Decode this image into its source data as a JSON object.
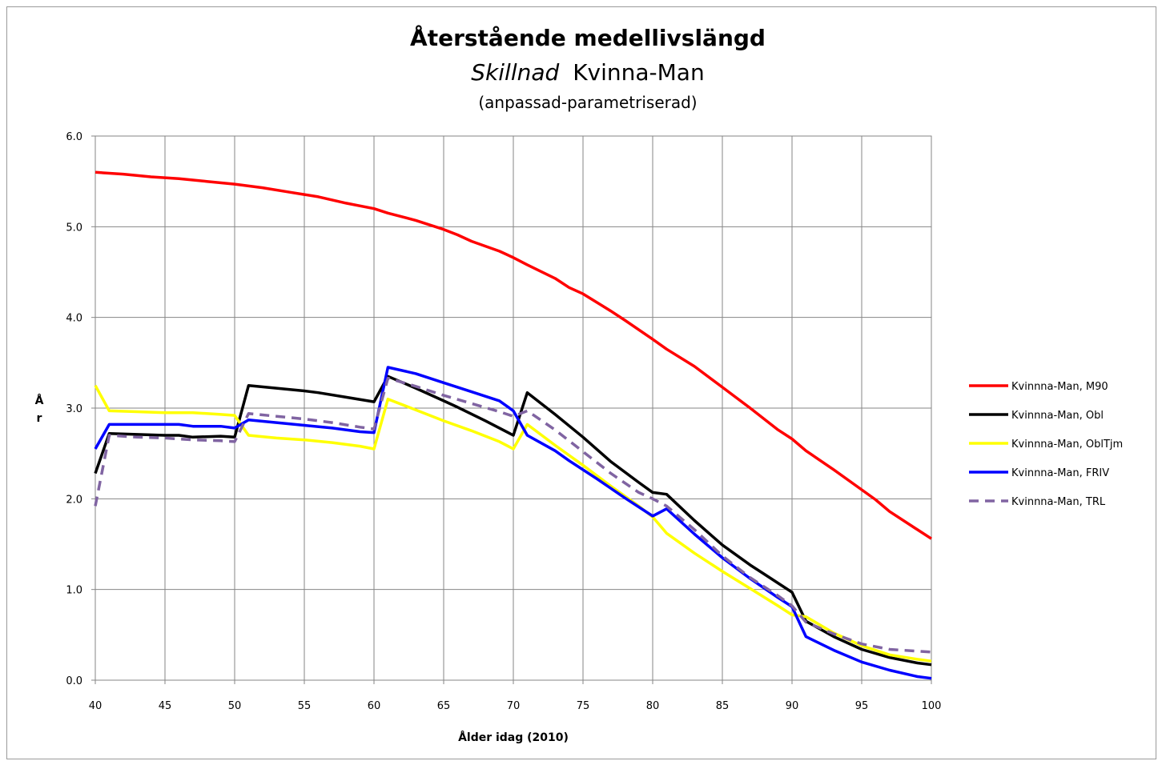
{
  "chart_data": {
    "type": "line",
    "title": "Återstående medellivslängd",
    "subtitle_italic": "Skillnad",
    "subtitle_rest": "Kvinna-Man",
    "subtitle2": "(anpassad-parametriserad)",
    "xlabel": "Ålder idag (2010)",
    "ylabel": "År",
    "xlim": [
      40,
      100
    ],
    "ylim": [
      0,
      6
    ],
    "x_ticks": [
      40,
      45,
      50,
      55,
      60,
      65,
      70,
      75,
      80,
      85,
      90,
      95,
      100
    ],
    "x_tick_labels": [
      "40",
      "45",
      "50",
      "55",
      "60",
      "65",
      "70",
      "75",
      "80",
      "85",
      "90",
      "95",
      "100"
    ],
    "y_ticks": [
      0,
      1,
      2,
      3,
      4,
      5,
      6
    ],
    "y_tick_labels": [
      "0.0",
      "1.0",
      "2.0",
      "3.0",
      "4.0",
      "5.0",
      "6.0"
    ],
    "grid": true,
    "legend_position": "right",
    "series": [
      {
        "name": "Kvinnna-Man, M90",
        "color": "#ff0000",
        "dash": false,
        "points": [
          [
            40,
            5.6
          ],
          [
            42,
            5.58
          ],
          [
            44,
            5.55
          ],
          [
            46,
            5.53
          ],
          [
            48,
            5.5
          ],
          [
            50,
            5.47
          ],
          [
            52,
            5.43
          ],
          [
            54,
            5.38
          ],
          [
            56,
            5.33
          ],
          [
            58,
            5.26
          ],
          [
            60,
            5.2
          ],
          [
            61,
            5.15
          ],
          [
            63,
            5.07
          ],
          [
            65,
            4.97
          ],
          [
            66,
            4.91
          ],
          [
            67,
            4.84
          ],
          [
            69,
            4.73
          ],
          [
            70,
            4.66
          ],
          [
            71,
            4.58
          ],
          [
            73,
            4.43
          ],
          [
            74,
            4.33
          ],
          [
            75,
            4.26
          ],
          [
            77,
            4.07
          ],
          [
            78,
            3.97
          ],
          [
            80,
            3.76
          ],
          [
            81,
            3.65
          ],
          [
            83,
            3.46
          ],
          [
            85,
            3.23
          ],
          [
            87,
            3.0
          ],
          [
            89,
            2.76
          ],
          [
            90,
            2.66
          ],
          [
            91,
            2.53
          ],
          [
            93,
            2.32
          ],
          [
            95,
            2.1
          ],
          [
            96,
            1.99
          ],
          [
            97,
            1.86
          ],
          [
            99,
            1.66
          ],
          [
            100,
            1.56
          ]
        ]
      },
      {
        "name": "Kvinnna-Man, Obl",
        "color": "#000000",
        "dash": false,
        "points": [
          [
            40,
            2.28
          ],
          [
            41,
            2.72
          ],
          [
            43,
            2.71
          ],
          [
            45,
            2.7
          ],
          [
            46,
            2.7
          ],
          [
            47,
            2.68
          ],
          [
            49,
            2.69
          ],
          [
            50,
            2.68
          ],
          [
            51,
            3.25
          ],
          [
            53,
            3.22
          ],
          [
            55,
            3.19
          ],
          [
            56,
            3.17
          ],
          [
            58,
            3.12
          ],
          [
            60,
            3.07
          ],
          [
            61,
            3.35
          ],
          [
            63,
            3.22
          ],
          [
            65,
            3.08
          ],
          [
            66,
            3.01
          ],
          [
            68,
            2.86
          ],
          [
            70,
            2.7
          ],
          [
            71,
            3.17
          ],
          [
            73,
            2.93
          ],
          [
            75,
            2.68
          ],
          [
            77,
            2.41
          ],
          [
            79,
            2.18
          ],
          [
            80,
            2.07
          ],
          [
            81,
            2.05
          ],
          [
            83,
            1.76
          ],
          [
            85,
            1.49
          ],
          [
            87,
            1.27
          ],
          [
            88,
            1.17
          ],
          [
            90,
            0.97
          ],
          [
            91,
            0.65
          ],
          [
            93,
            0.48
          ],
          [
            95,
            0.34
          ],
          [
            97,
            0.25
          ],
          [
            99,
            0.19
          ],
          [
            100,
            0.17
          ]
        ]
      },
      {
        "name": "Kvinnna-Man, OblTjm",
        "color": "#ffff00",
        "dash": false,
        "points": [
          [
            40,
            3.25
          ],
          [
            41,
            2.97
          ],
          [
            43,
            2.96
          ],
          [
            45,
            2.95
          ],
          [
            47,
            2.95
          ],
          [
            49,
            2.93
          ],
          [
            50,
            2.92
          ],
          [
            51,
            2.7
          ],
          [
            53,
            2.67
          ],
          [
            55,
            2.65
          ],
          [
            57,
            2.62
          ],
          [
            59,
            2.58
          ],
          [
            60,
            2.55
          ],
          [
            61,
            3.1
          ],
          [
            63,
            2.98
          ],
          [
            65,
            2.86
          ],
          [
            67,
            2.75
          ],
          [
            69,
            2.63
          ],
          [
            70,
            2.55
          ],
          [
            71,
            2.82
          ],
          [
            73,
            2.59
          ],
          [
            75,
            2.37
          ],
          [
            77,
            2.14
          ],
          [
            79,
            1.92
          ],
          [
            80,
            1.8
          ],
          [
            81,
            1.62
          ],
          [
            83,
            1.4
          ],
          [
            85,
            1.2
          ],
          [
            87,
            1.01
          ],
          [
            89,
            0.82
          ],
          [
            90,
            0.72
          ],
          [
            91,
            0.7
          ],
          [
            93,
            0.52
          ],
          [
            95,
            0.38
          ],
          [
            97,
            0.28
          ],
          [
            99,
            0.23
          ],
          [
            100,
            0.21
          ]
        ]
      },
      {
        "name": "Kvinnna-Man, FRIV",
        "color": "#0000ff",
        "dash": false,
        "points": [
          [
            40,
            2.55
          ],
          [
            41,
            2.82
          ],
          [
            43,
            2.82
          ],
          [
            45,
            2.82
          ],
          [
            46,
            2.82
          ],
          [
            47,
            2.8
          ],
          [
            49,
            2.8
          ],
          [
            50,
            2.78
          ],
          [
            51,
            2.87
          ],
          [
            53,
            2.84
          ],
          [
            55,
            2.81
          ],
          [
            57,
            2.78
          ],
          [
            59,
            2.74
          ],
          [
            60,
            2.73
          ],
          [
            61,
            3.45
          ],
          [
            63,
            3.38
          ],
          [
            65,
            3.28
          ],
          [
            67,
            3.18
          ],
          [
            69,
            3.08
          ],
          [
            70,
            2.97
          ],
          [
            71,
            2.7
          ],
          [
            73,
            2.53
          ],
          [
            74,
            2.42
          ],
          [
            76,
            2.22
          ],
          [
            78,
            2.01
          ],
          [
            80,
            1.81
          ],
          [
            81,
            1.89
          ],
          [
            83,
            1.61
          ],
          [
            85,
            1.35
          ],
          [
            87,
            1.12
          ],
          [
            89,
            0.91
          ],
          [
            90,
            0.81
          ],
          [
            91,
            0.48
          ],
          [
            93,
            0.33
          ],
          [
            95,
            0.2
          ],
          [
            97,
            0.11
          ],
          [
            99,
            0.04
          ],
          [
            100,
            0.02
          ]
        ]
      },
      {
        "name": "Kvinnna-Man, TRL",
        "color": "#8064a2",
        "dash": true,
        "points": [
          [
            40,
            1.92
          ],
          [
            41,
            2.7
          ],
          [
            43,
            2.68
          ],
          [
            45,
            2.67
          ],
          [
            47,
            2.65
          ],
          [
            49,
            2.64
          ],
          [
            50,
            2.63
          ],
          [
            51,
            2.94
          ],
          [
            53,
            2.91
          ],
          [
            55,
            2.88
          ],
          [
            57,
            2.84
          ],
          [
            59,
            2.79
          ],
          [
            60,
            2.77
          ],
          [
            61,
            3.33
          ],
          [
            63,
            3.24
          ],
          [
            65,
            3.14
          ],
          [
            67,
            3.05
          ],
          [
            69,
            2.96
          ],
          [
            70,
            2.91
          ],
          [
            71,
            2.97
          ],
          [
            73,
            2.76
          ],
          [
            75,
            2.52
          ],
          [
            77,
            2.28
          ],
          [
            79,
            2.07
          ],
          [
            80,
            2.0
          ],
          [
            81,
            1.92
          ],
          [
            83,
            1.66
          ],
          [
            85,
            1.37
          ],
          [
            87,
            1.13
          ],
          [
            89,
            0.93
          ],
          [
            90,
            0.82
          ],
          [
            91,
            0.64
          ],
          [
            93,
            0.51
          ],
          [
            95,
            0.4
          ],
          [
            97,
            0.34
          ],
          [
            99,
            0.32
          ],
          [
            100,
            0.31
          ]
        ]
      }
    ]
  }
}
